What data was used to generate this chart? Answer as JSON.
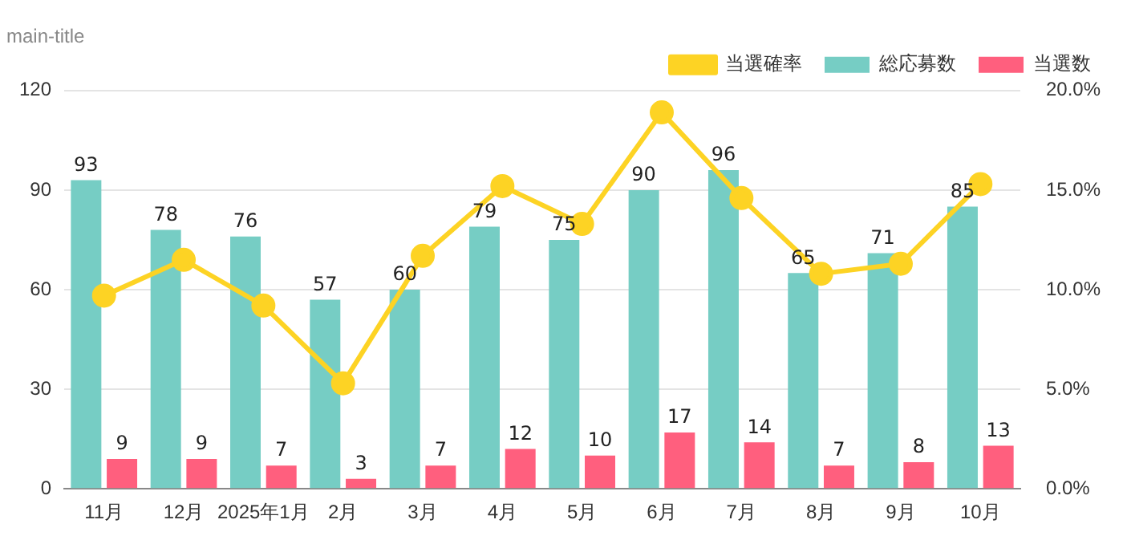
{
  "chart_data": {
    "type": "bar",
    "title": "main-title",
    "categories": [
      "11月",
      "12月",
      "2025年1月",
      "2月",
      "3月",
      "4月",
      "5月",
      "6月",
      "7月",
      "8月",
      "9月",
      "10月"
    ],
    "series": [
      {
        "name": "総応募数",
        "color": "#76cdc4",
        "values": [
          93,
          78,
          76,
          57,
          60,
          79,
          75,
          90,
          96,
          65,
          71,
          85
        ],
        "value_labels": [
          "93",
          "78",
          "76",
          "57",
          "60",
          "79",
          "75",
          "90",
          "96",
          "65",
          "71",
          "85"
        ]
      },
      {
        "name": "当選数",
        "color": "#ff5f7e",
        "values": [
          9,
          9,
          7,
          3,
          7,
          12,
          10,
          17,
          14,
          7,
          8,
          13
        ],
        "value_labels": [
          "9",
          "9",
          "7",
          "3",
          "7",
          "12",
          "10",
          "17",
          "14",
          "7",
          "8",
          "13"
        ]
      },
      {
        "name": "当選確率",
        "type": "line",
        "axis": "y2",
        "color": "#fdd324",
        "values": [
          9.7,
          11.5,
          9.2,
          5.3,
          11.7,
          15.2,
          13.3,
          18.9,
          14.6,
          10.8,
          11.3,
          15.3
        ]
      }
    ],
    "ylim": [
      0,
      120
    ],
    "yticks": [
      0,
      30,
      60,
      90,
      120
    ],
    "y2lim": [
      0,
      20
    ],
    "y2ticks": [
      {
        "value": 0,
        "label": "0.0%"
      },
      {
        "value": 5,
        "label": "5.0%"
      },
      {
        "value": 10,
        "label": "10.0%"
      },
      {
        "value": 15,
        "label": "15.0%"
      },
      {
        "value": 20,
        "label": "20.0%"
      }
    ],
    "grid": "y",
    "legend": "top right",
    "marker": "circle",
    "line_style": "solid"
  }
}
